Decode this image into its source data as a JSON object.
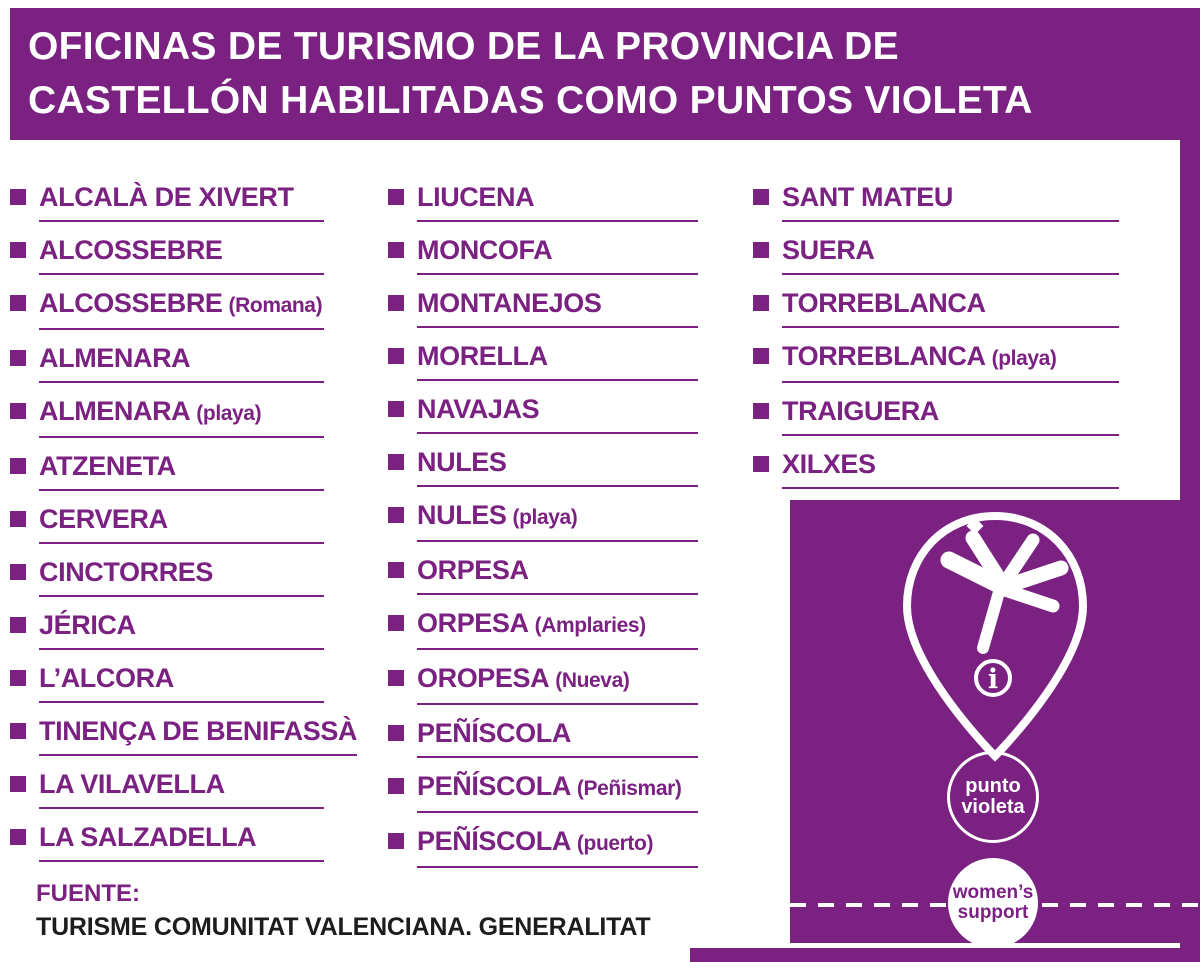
{
  "colors": {
    "purple": "#7a2182",
    "white": "#ffffff",
    "text_dark": "#1d1d1b"
  },
  "header": {
    "line1": "OFICINAS DE TURISMO DE LA PROVINCIA DE",
    "line2": "CASTELLÓN HABILITADAS COMO PUNTOS VIOLETA"
  },
  "columns": [
    {
      "items": [
        {
          "name": "ALCALÀ DE XIVERT",
          "note": ""
        },
        {
          "name": "ALCOSSEBRE",
          "note": ""
        },
        {
          "name": "ALCOSSEBRE",
          "note": "(Romana)"
        },
        {
          "name": "ALMENARA",
          "note": ""
        },
        {
          "name": "ALMENARA",
          "note": "(playa)"
        },
        {
          "name": "ATZENETA",
          "note": ""
        },
        {
          "name": "CERVERA",
          "note": ""
        },
        {
          "name": "CINCTORRES",
          "note": ""
        },
        {
          "name": "JÉRICA",
          "note": ""
        },
        {
          "name": "L’ALCORA",
          "note": ""
        },
        {
          "name": "TINENÇA DE BENIFASSÀ",
          "note": ""
        },
        {
          "name": "LA VILAVELLA",
          "note": ""
        },
        {
          "name": "LA SALZADELLA",
          "note": ""
        }
      ]
    },
    {
      "items": [
        {
          "name": "LIUCENA",
          "note": ""
        },
        {
          "name": "MONCOFA",
          "note": ""
        },
        {
          "name": "MONTANEJOS",
          "note": ""
        },
        {
          "name": "MORELLA",
          "note": ""
        },
        {
          "name": "NAVAJAS",
          "note": ""
        },
        {
          "name": "NULES",
          "note": ""
        },
        {
          "name": "NULES",
          "note": "(playa)"
        },
        {
          "name": "ORPESA",
          "note": ""
        },
        {
          "name": "ORPESA",
          "note": "(Amplaries)"
        },
        {
          "name": "OROPESA",
          "note": "(Nueva)"
        },
        {
          "name": "PEÑÍSCOLA",
          "note": ""
        },
        {
          "name": "PEÑÍSCOLA",
          "note": "(Peñismar)"
        },
        {
          "name": "PEÑÍSCOLA",
          "note": "(puerto)"
        }
      ]
    },
    {
      "items": [
        {
          "name": "SANT MATEU",
          "note": ""
        },
        {
          "name": "SUERA",
          "note": ""
        },
        {
          "name": "TORREBLANCA",
          "note": ""
        },
        {
          "name": "TORREBLANCA",
          "note": "(playa)"
        },
        {
          "name": "TRAIGUERA",
          "note": ""
        },
        {
          "name": "XILXES",
          "note": ""
        }
      ]
    }
  ],
  "footer": {
    "label": "FUENTE:",
    "source": "TURISME COMUNITAT VALENCIANA. GENERALITAT"
  },
  "badge": {
    "info_glyph": "i",
    "punto_line1": "punto",
    "punto_line2": "violeta",
    "women_line1": "women’s",
    "women_line2": "support"
  }
}
